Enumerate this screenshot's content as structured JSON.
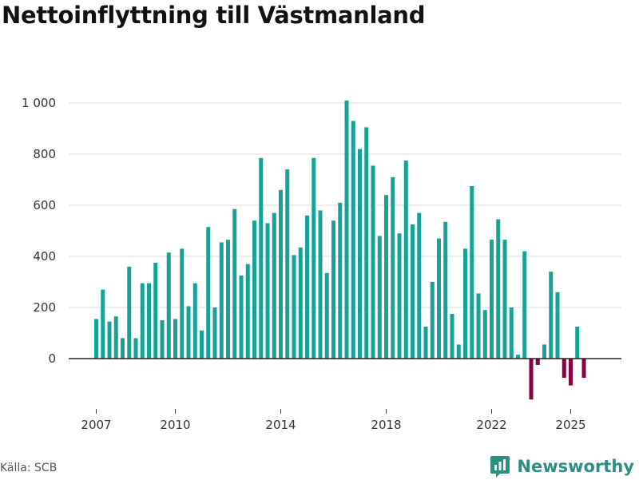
{
  "page": {
    "title": "Nettoinflyttning till Västmanland",
    "source": "Källa: SCB",
    "brand": "Newsworthy"
  },
  "colors": {
    "positive": "#17a297",
    "negative": "#8b0044",
    "grid": "#dddddd",
    "zero_line": "#222222",
    "brand": "#2f8e83"
  },
  "chart_data": {
    "type": "bar",
    "title": "Nettoinflyttning till Västmanland",
    "xlabel": "",
    "ylabel": "",
    "ylim": [
      -160,
      1050
    ],
    "yticks": [
      0,
      200,
      400,
      600,
      800,
      1000
    ],
    "ytick_labels": [
      "0",
      "200",
      "400",
      "600",
      "800",
      "1 000"
    ],
    "xticks": [
      2007,
      2010,
      2014,
      2018,
      2022,
      2025
    ],
    "xtick_labels": [
      "2007",
      "2010",
      "2014",
      "2018",
      "2022",
      "2025"
    ],
    "start_year": 2007,
    "periods_per_year": 4,
    "grid": true,
    "series": [
      {
        "name": "Nettoinflyttning",
        "values": [
          155,
          270,
          145,
          165,
          80,
          360,
          80,
          295,
          295,
          375,
          150,
          415,
          155,
          430,
          205,
          295,
          110,
          515,
          200,
          455,
          465,
          585,
          325,
          370,
          540,
          785,
          530,
          570,
          660,
          740,
          405,
          435,
          560,
          785,
          580,
          335,
          540,
          610,
          1010,
          930,
          820,
          905,
          755,
          480,
          640,
          710,
          490,
          775,
          525,
          570,
          125,
          300,
          470,
          535,
          175,
          55,
          430,
          675,
          255,
          190,
          465,
          545,
          465,
          200,
          15,
          420,
          -160,
          -25,
          55,
          340,
          260,
          -75,
          -105,
          125,
          -75
        ]
      }
    ]
  }
}
